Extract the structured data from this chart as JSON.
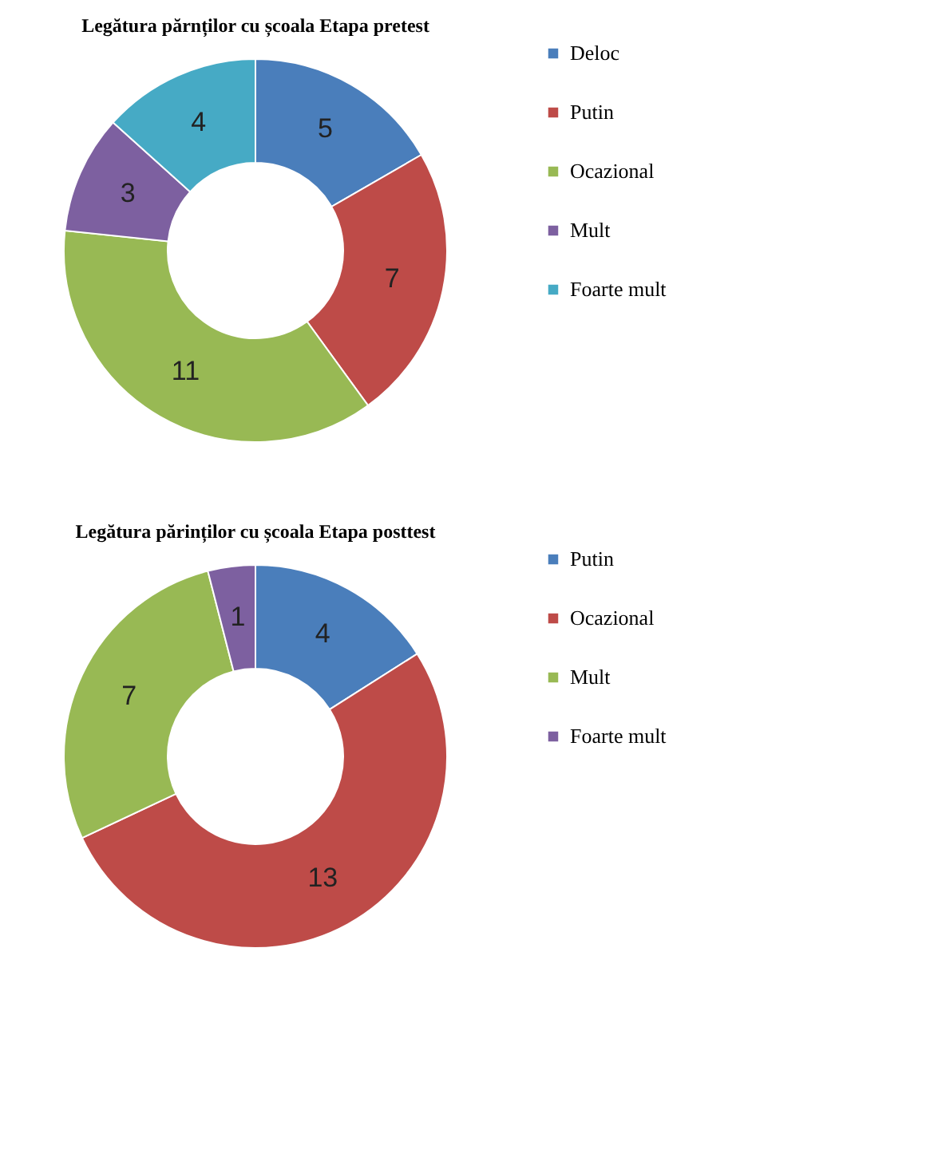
{
  "chart_data": [
    {
      "type": "donut",
      "title": "Legătura părnților cu școala Etapa  pretest",
      "categories": [
        "Deloc",
        "Putin",
        "Ocazional",
        "Mult",
        "Foarte mult"
      ],
      "values": [
        5,
        7,
        11,
        3,
        4
      ],
      "colors": [
        "#4a7ebb",
        "#be4b48",
        "#98b954",
        "#7d60a0",
        "#46aac5"
      ],
      "data_labels": true,
      "legend": "right"
    },
    {
      "type": "donut",
      "title": "Legătura părinților cu școala Etapa  posttest",
      "categories": [
        "Putin",
        "Ocazional",
        "Mult",
        "Foarte mult"
      ],
      "values": [
        4,
        13,
        7,
        1
      ],
      "colors": [
        "#4a7ebb",
        "#be4b48",
        "#98b954",
        "#7d60a0"
      ],
      "data_labels": true,
      "legend": "right"
    }
  ]
}
